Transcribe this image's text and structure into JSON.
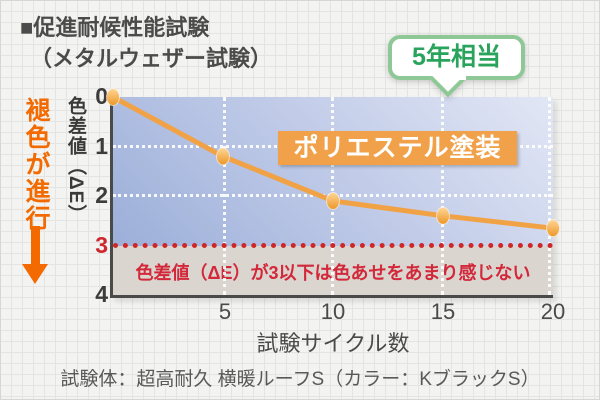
{
  "title": {
    "line1": "■促進耐候性能試験",
    "line2": "（メタルウェザー試験）"
  },
  "annotation_bubble": {
    "label": "5年相当"
  },
  "series_badge": {
    "label": "ポリエステル塗装"
  },
  "fade_note": {
    "text": "褪色が進行"
  },
  "threshold_note": {
    "text": "色差値（ΔE）が3以下は色あせをあまり感じない"
  },
  "y_axis": {
    "label": "色差値（ΔE）",
    "ticks": [
      "0",
      "1",
      "2",
      "3",
      "4"
    ]
  },
  "x_axis": {
    "label": "試験サイクル数",
    "ticks": [
      "5",
      "10",
      "15",
      "20"
    ]
  },
  "caption": {
    "text": "試験体：超高耐久 横暖ルーフS（カラー：KブラックS）"
  },
  "chart_data": {
    "type": "line",
    "title": "促進耐候性能試験（メタルウェザー試験）",
    "x": [
      0,
      5,
      10,
      15,
      20
    ],
    "series": [
      {
        "name": "ポリエステル塗装",
        "values": [
          0,
          1.2,
          2.1,
          2.4,
          2.65
        ]
      }
    ],
    "xlabel": "試験サイクル数",
    "ylabel": "色差値（ΔE）",
    "xlim": [
      0,
      20
    ],
    "ylim": [
      0,
      4
    ],
    "y_axis_inverted": true,
    "x_ticks": [
      5,
      10,
      15,
      20
    ],
    "y_ticks": [
      0,
      1,
      2,
      3,
      4
    ],
    "grid": true,
    "legend_position": "none",
    "threshold": {
      "value": 3,
      "label": "色差値（ΔE）が3以下は色あせをあまり感じない"
    },
    "annotations": [
      {
        "label": "5年相当",
        "x": 15
      },
      {
        "label": "褪色が進行",
        "meaning": "fading-progresses-downward"
      }
    ]
  },
  "colors": {
    "line": "#f0a245",
    "marker_light": "#ffd698",
    "marker_dark": "#ec9726",
    "fade_note": "#f26a00",
    "threshold_line": "#cf2727",
    "threshold_text": "#d2283a",
    "threshold_tick": "#cf2730",
    "bubble_text": "#2aa45c",
    "bubble_border": "#8ec897",
    "series_badge_bg": "#f1a14a",
    "series_badge_text": "#ffffff",
    "plot_top_right": "#e2e7f5",
    "plot_bottom_left": "#9cafd9",
    "below_threshold_bg": "#dbd5cf",
    "axis": "#4a4a4a",
    "title_text": "#4b4b4b"
  }
}
